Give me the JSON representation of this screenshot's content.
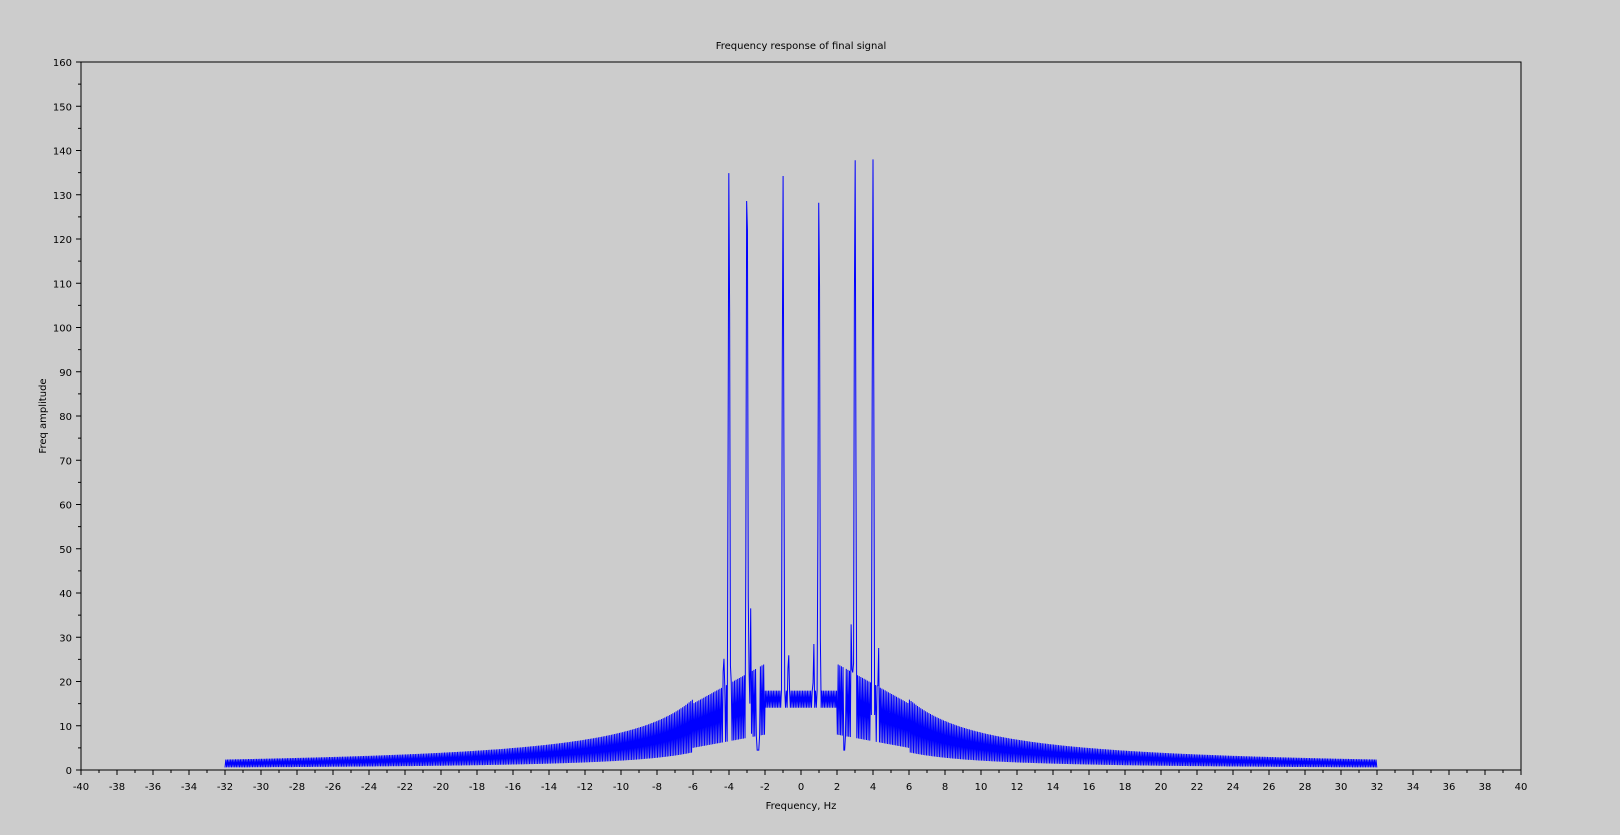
{
  "chart_data": {
    "type": "line",
    "title": "Frequency response of final signal",
    "xlabel": "Frequency, Hz",
    "ylabel": "Freq amplitude",
    "xlim": [
      -40,
      40
    ],
    "ylim": [
      0,
      160
    ],
    "x_ticks": [
      -40,
      -38,
      -36,
      -34,
      -32,
      -30,
      -28,
      -26,
      -24,
      -22,
      -20,
      -18,
      -16,
      -14,
      -12,
      -10,
      -8,
      -6,
      -4,
      -2,
      0,
      2,
      4,
      6,
      8,
      10,
      12,
      14,
      16,
      18,
      20,
      22,
      24,
      26,
      28,
      30,
      32,
      34,
      36,
      38,
      40
    ],
    "y_ticks": [
      0,
      10,
      20,
      30,
      40,
      50,
      60,
      70,
      80,
      90,
      100,
      110,
      120,
      130,
      140,
      150,
      160
    ],
    "grid": false,
    "colors": {
      "background": "#cccccc",
      "plot_area": "#cccccc",
      "series": "#0000ff",
      "axes": "#000000"
    },
    "series": [
      {
        "x_range": [
          -32,
          32
        ],
        "peaks": [
          {
            "x": -4.0,
            "y": 138
          },
          {
            "x": -3.0,
            "y": 141
          },
          {
            "x": -1.0,
            "y": 135
          },
          {
            "x": 1.0,
            "y": 135
          },
          {
            "x": 3.0,
            "y": 141
          },
          {
            "x": 4.0,
            "y": 138
          }
        ],
        "secondary_peaks": [
          {
            "x": -4.3,
            "y": 31
          },
          {
            "x": -2.8,
            "y": 37
          },
          {
            "x": -0.7,
            "y": 32
          },
          {
            "x": 0.7,
            "y": 32
          },
          {
            "x": 2.8,
            "y": 37
          },
          {
            "x": 4.3,
            "y": 31
          }
        ],
        "center_level": 16,
        "min_dips": [
          {
            "x": -2.4,
            "y": 4.5
          },
          {
            "x": 2.4,
            "y": 4.5
          }
        ]
      }
    ]
  }
}
